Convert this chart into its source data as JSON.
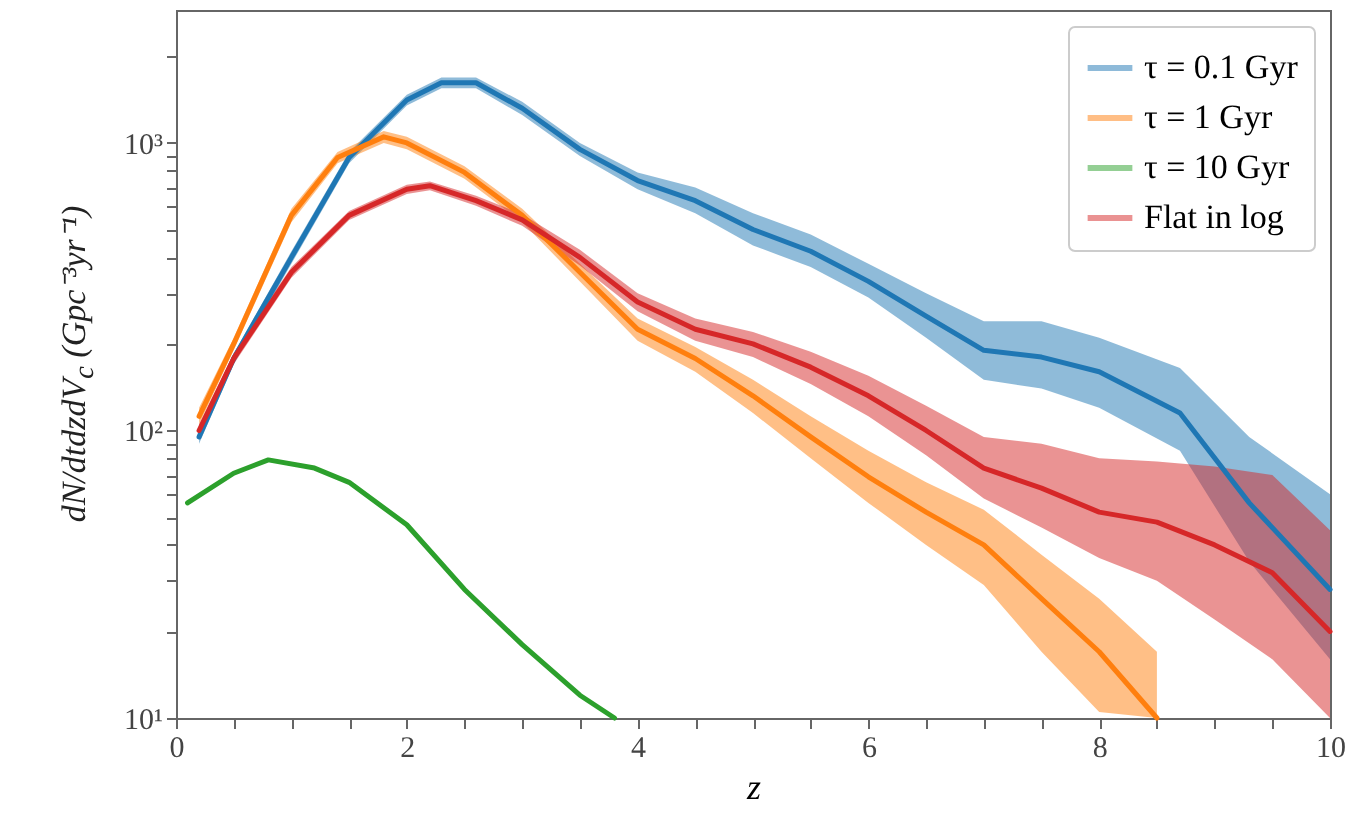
{
  "chart_data": {
    "type": "line",
    "xlabel": "z",
    "ylabel": "dN/dtdzdV$_{c}$ (Gpc⁻³yr⁻¹)",
    "log": "y",
    "grid": false,
    "legend": "top right",
    "line_style": "solid",
    "marker": "none",
    "xlim": [
      0,
      10
    ],
    "xticks": [
      0,
      {
        "value": 0.5,
        "label": null
      },
      {
        "value": 1,
        "label": null
      },
      {
        "value": 1.5,
        "label": null
      },
      2,
      {
        "value": 2.5,
        "label": null
      },
      {
        "value": 3,
        "label": null
      },
      {
        "value": 3.5,
        "label": null
      },
      4,
      {
        "value": 4.5,
        "label": null
      },
      {
        "value": 5,
        "label": null
      },
      {
        "value": 5.5,
        "label": null
      },
      6,
      {
        "value": 6.5,
        "label": null
      },
      {
        "value": 7,
        "label": null
      },
      {
        "value": 7.5,
        "label": null
      },
      8,
      {
        "value": 8.5,
        "label": null
      },
      {
        "value": 9,
        "label": null
      },
      {
        "value": 9.5,
        "label": null
      },
      10
    ],
    "ylim": [
      10,
      2900
    ],
    "yticks": [
      {
        "value": 10,
        "label": "10¹"
      },
      {
        "value": 20,
        "label": null
      },
      {
        "value": 30,
        "label": null
      },
      {
        "value": 40,
        "label": null
      },
      {
        "value": 50,
        "label": null
      },
      {
        "value": 60,
        "label": null
      },
      {
        "value": 70,
        "label": null
      },
      {
        "value": 80,
        "label": null
      },
      {
        "value": 90,
        "label": null
      },
      {
        "value": 100,
        "label": "10²"
      },
      {
        "value": 200,
        "label": null
      },
      {
        "value": 300,
        "label": null
      },
      {
        "value": 400,
        "label": null
      },
      {
        "value": 500,
        "label": null
      },
      {
        "value": 600,
        "label": null
      },
      {
        "value": 700,
        "label": null
      },
      {
        "value": 800,
        "label": null
      },
      {
        "value": 900,
        "label": null
      },
      {
        "value": 1000,
        "label": "10³"
      },
      {
        "value": 2000,
        "label": null
      }
    ],
    "series": [
      {
        "name": "τ = 0.1 Gyr",
        "color": "#1f77b4",
        "x": [
          0.2,
          0.5,
          1,
          1.5,
          2,
          2.3,
          2.6,
          3,
          3.5,
          4,
          4.5,
          5,
          5.5,
          6,
          6.5,
          7,
          7.5,
          8,
          8.7,
          9.3,
          10
        ],
        "values": [
          95,
          178,
          400,
          890,
          1410,
          1620,
          1620,
          1320,
          950,
          740,
          630,
          500,
          420,
          330,
          250,
          190,
          180,
          160,
          115,
          56,
          28
        ],
        "lower": [
          90,
          170,
          380,
          850,
          1350,
          1550,
          1550,
          1250,
          900,
          690,
          570,
          440,
          370,
          290,
          210,
          150,
          140,
          120,
          85,
          35,
          16
        ],
        "upper": [
          100,
          185,
          420,
          930,
          1470,
          1690,
          1690,
          1390,
          1000,
          790,
          700,
          570,
          480,
          380,
          300,
          240,
          240,
          210,
          165,
          95,
          60
        ]
      },
      {
        "name": "τ = 1 Gyr",
        "color": "#ff7f0e",
        "x": [
          0.2,
          0.5,
          1,
          1.4,
          1.8,
          2,
          2.5,
          3,
          3.5,
          4,
          4.5,
          5,
          5.5,
          6,
          6.5,
          7,
          7.5,
          8,
          8.5
        ],
        "values": [
          112,
          200,
          560,
          890,
          1050,
          1000,
          790,
          560,
          355,
          225,
          178,
          132,
          95,
          69,
          52,
          40,
          26,
          17,
          10
        ],
        "lower": [
          105,
          190,
          530,
          850,
          1000,
          950,
          750,
          530,
          330,
          205,
          160,
          115,
          80,
          56,
          40,
          29,
          17,
          10.5,
          10
        ],
        "upper": [
          120,
          210,
          590,
          930,
          1100,
          1050,
          830,
          590,
          380,
          245,
          195,
          150,
          112,
          85,
          66,
          53,
          37,
          26,
          17
        ]
      },
      {
        "name": "τ = 10 Gyr",
        "color": "#2ca02c",
        "x": [
          0.1,
          0.5,
          0.8,
          1.2,
          1.5,
          2,
          2.5,
          3,
          3.5,
          3.8
        ],
        "values": [
          56,
          71,
          79,
          74,
          66,
          47,
          28,
          18,
          12,
          10
        ]
      },
      {
        "name": "Flat in log",
        "color": "#d62728",
        "x": [
          0.2,
          0.5,
          1,
          1.5,
          2,
          2.2,
          2.6,
          3,
          3.5,
          4,
          4.5,
          5,
          5.5,
          6,
          6.5,
          7,
          7.5,
          8,
          8.5,
          9,
          9.5,
          10
        ],
        "values": [
          100,
          178,
          355,
          560,
          690,
          710,
          630,
          540,
          400,
          280,
          225,
          200,
          166,
          132,
          100,
          74,
          63,
          52,
          48,
          40,
          32,
          20
        ],
        "lower": [
          95,
          170,
          340,
          540,
          665,
          685,
          605,
          515,
          375,
          260,
          205,
          180,
          145,
          112,
          82,
          58,
          46,
          36,
          30,
          22,
          16,
          10
        ],
        "upper": [
          105,
          186,
          370,
          580,
          715,
          735,
          655,
          565,
          425,
          300,
          245,
          220,
          188,
          155,
          122,
          95,
          90,
          80,
          78,
          75,
          70,
          45
        ]
      }
    ]
  }
}
